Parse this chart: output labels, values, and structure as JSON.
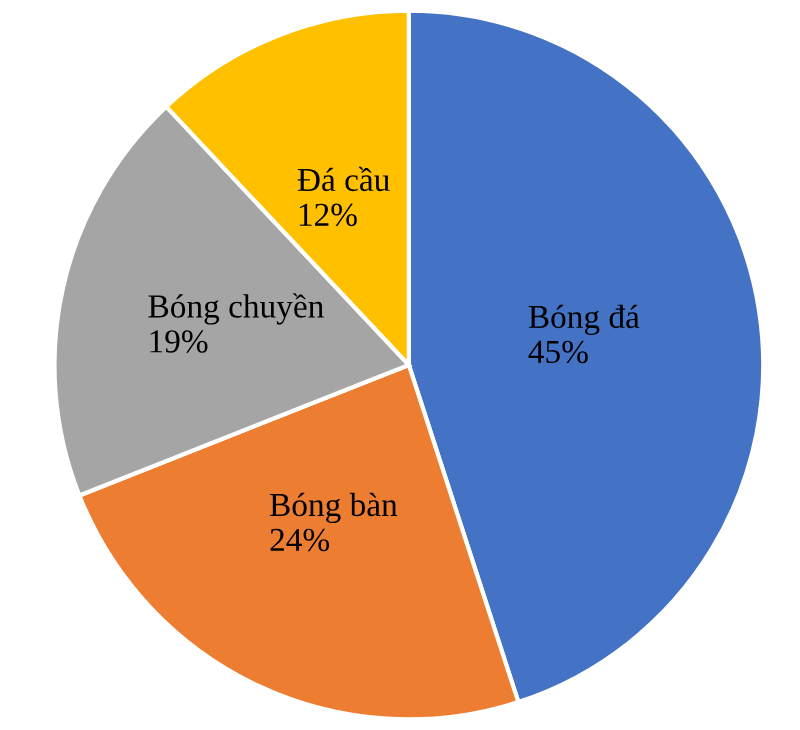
{
  "chart_data": {
    "type": "pie",
    "categories": [
      "Bóng đá",
      "Bóng bàn",
      "Bóng chuyền",
      "Đá cầu"
    ],
    "values": [
      45,
      24,
      19,
      12
    ],
    "colors": [
      "#4472c4",
      "#ed7d31",
      "#a5a5a5",
      "#ffc000"
    ],
    "value_labels": [
      "45%",
      "24%",
      "19%",
      "12%"
    ],
    "legend": false
  }
}
